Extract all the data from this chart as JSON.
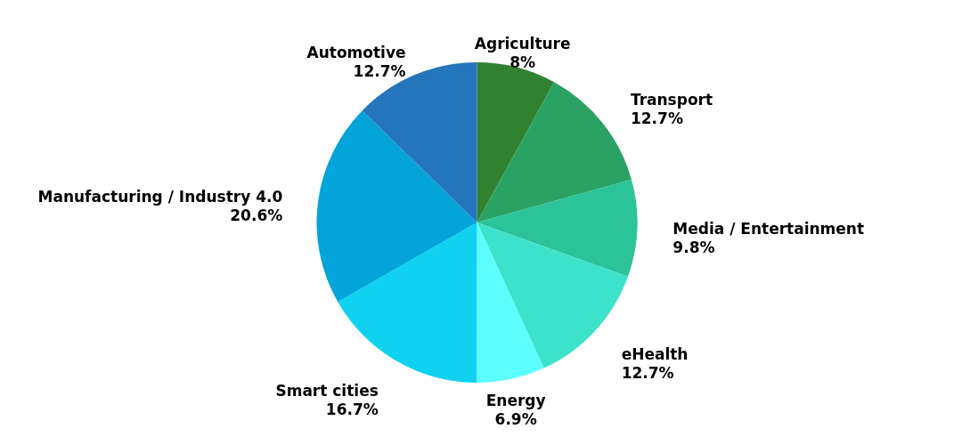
{
  "chart_data": {
    "type": "pie",
    "categories": [
      "Agriculture",
      "Transport",
      "Media / Entertainment",
      "eHealth",
      "Energy",
      "Smart cities",
      "Manufacturing / Industry 4.0",
      "Automotive"
    ],
    "values": [
      8,
      12.7,
      9.8,
      12.7,
      6.9,
      16.7,
      20.6,
      12.7
    ],
    "value_labels": [
      "8%",
      "12.7%",
      "9.8%",
      "12.7%",
      "6.9%",
      "16.7%",
      "20.6%",
      "12.7%"
    ],
    "colors": [
      "#318230",
      "#2aa263",
      "#2bc398",
      "#3de2cb",
      "#5cfefe",
      "#0fd2f0",
      "#02a4da",
      "#2475bb"
    ]
  }
}
